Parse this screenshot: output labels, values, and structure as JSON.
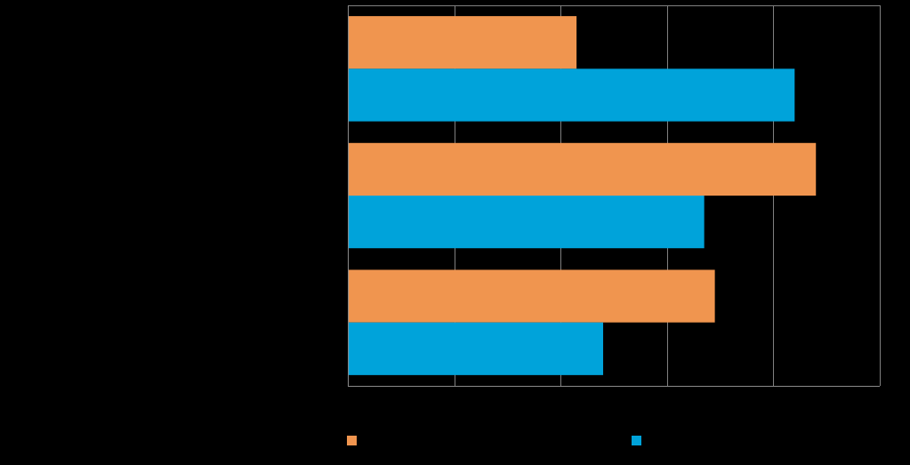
{
  "chart_data": {
    "type": "bar",
    "orientation": "horizontal",
    "title": "",
    "xlabel": "",
    "ylabel": "",
    "categories": [
      "",
      "",
      ""
    ],
    "xlim": [
      0,
      100
    ],
    "grid": true,
    "legend_position": "bottom",
    "series": [
      {
        "color": "#F0954F",
        "values": [
          43,
          88,
          69
        ]
      },
      {
        "color": "#00A3DA",
        "values": [
          84,
          67,
          48
        ]
      }
    ]
  },
  "colors": {
    "background": "#000000",
    "gridline": "#808080",
    "axis": "#8a8a8a"
  }
}
